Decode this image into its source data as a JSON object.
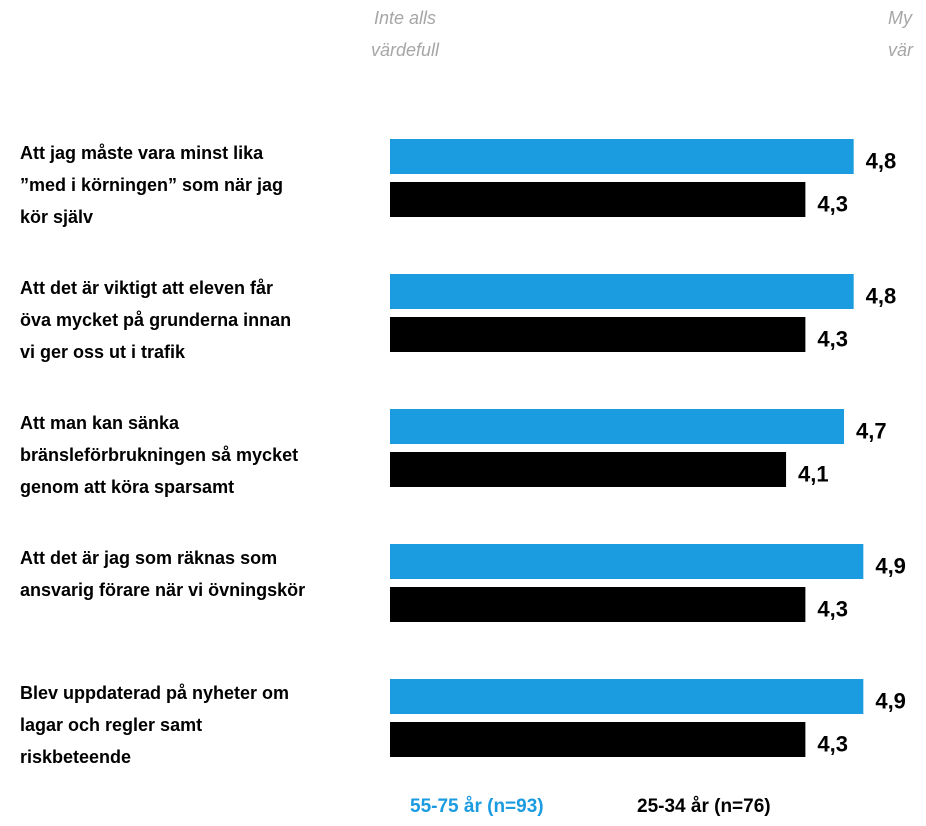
{
  "chart_data": {
    "type": "bar",
    "orientation": "horizontal",
    "axis_end_labels": {
      "low": [
        "Inte alls",
        "värdefull"
      ],
      "high": [
        "My",
        "vär"
      ]
    },
    "categories": [
      "Att jag måste vara minst lika\n”med i körningen” som när jag\nkör själv",
      "Att det är viktigt att eleven får\növa mycket på grunderna innan\nvi ger oss ut i trafik",
      "Att man kan sänka\nbränsleförbrukningen så mycket\ngenom att köra sparsamt",
      "Att det är jag som räknas som\nansvarig förare när vi övningskör",
      "Blev uppdaterad på nyheter om\nlagar och regler samt\nriskbeteende"
    ],
    "series": [
      {
        "name": "55-75 år (n=93)",
        "color": "#1b9be0",
        "values": [
          4.8,
          4.8,
          4.7,
          4.9,
          4.9
        ],
        "value_labels": [
          "4,8",
          "4,8",
          "4,7",
          "4,9",
          "4,9"
        ]
      },
      {
        "name": "25-34 år (n=76)",
        "color": "#000000",
        "values": [
          4.3,
          4.3,
          4.1,
          4.3,
          4.3
        ],
        "value_labels": [
          "4,3",
          "4,3",
          "4,1",
          "4,3",
          "4,3"
        ]
      }
    ],
    "xlim": [
      0,
      5
    ],
    "legend": "bottom"
  }
}
